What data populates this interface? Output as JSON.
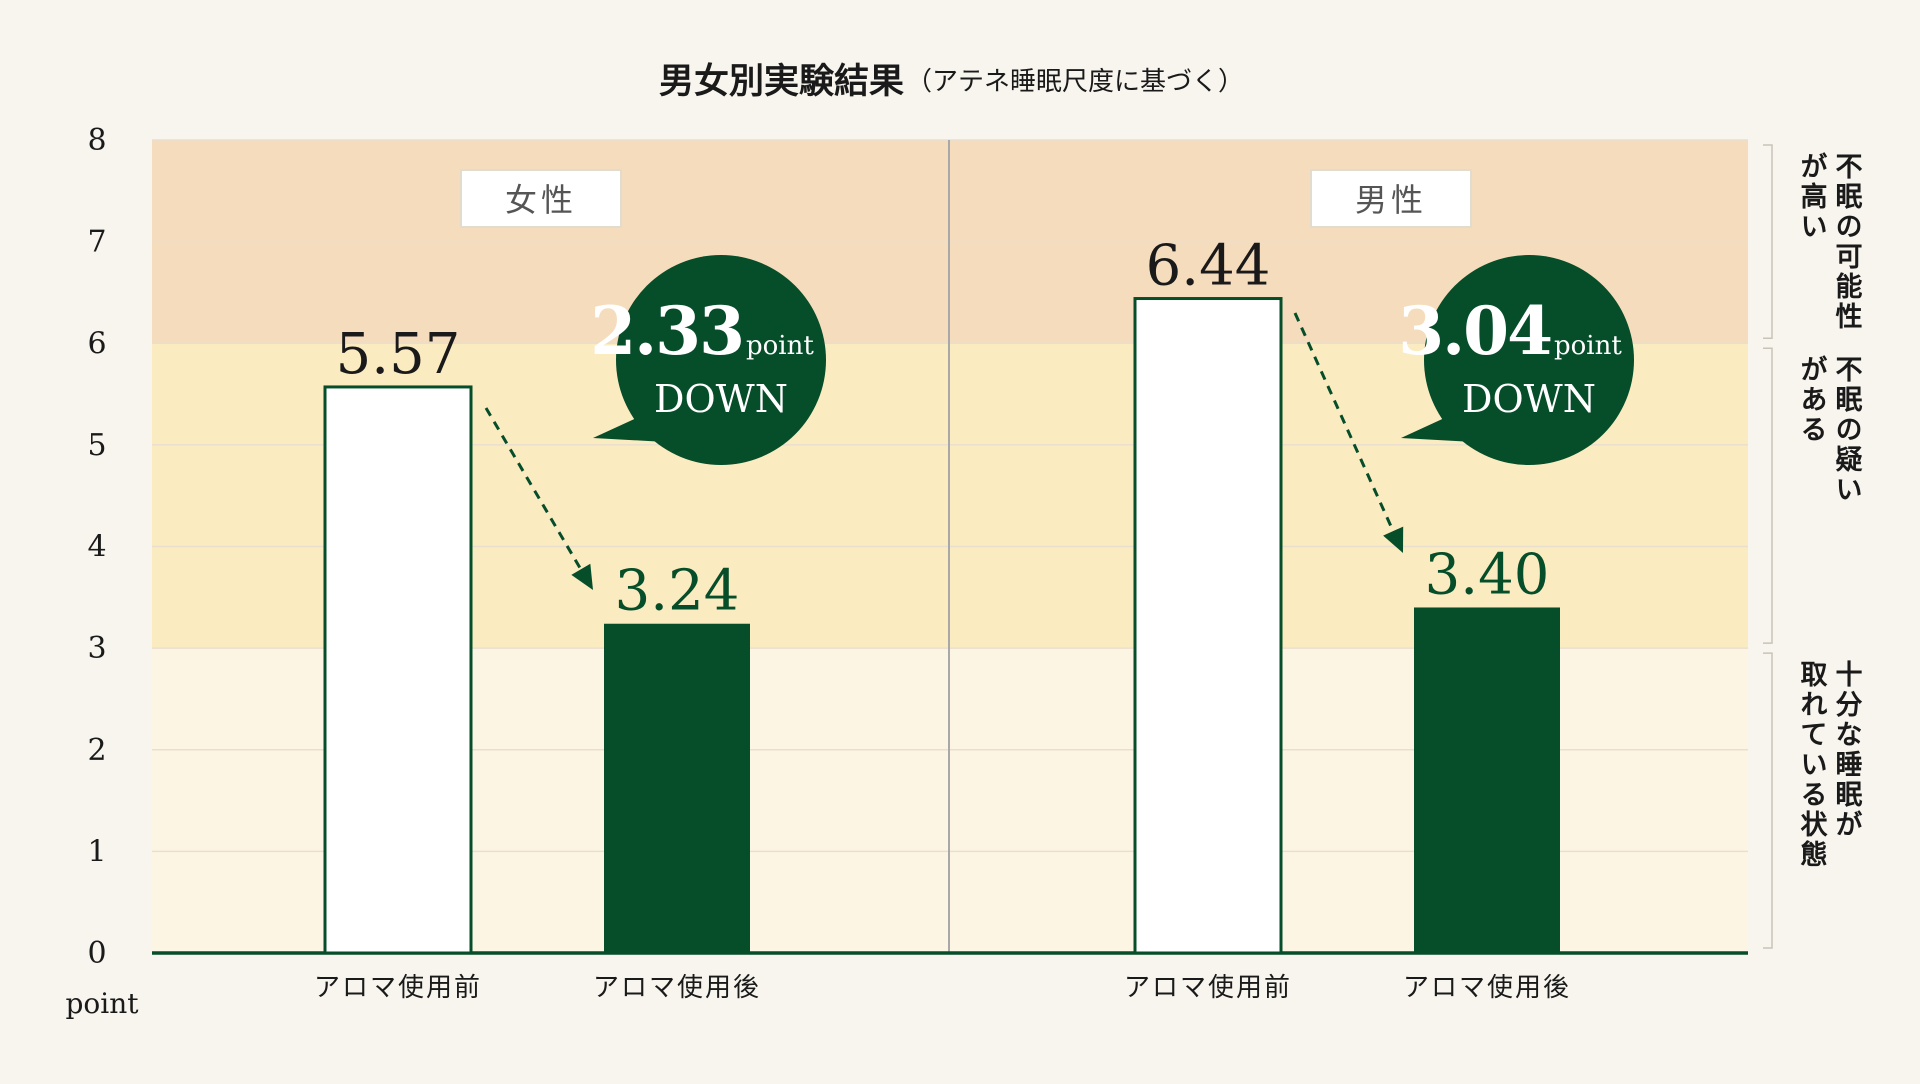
{
  "chart_data": {
    "type": "bar",
    "title": "男女別実験結果",
    "subtitle": "（アテネ睡眠尺度に基づく）",
    "ylabel": "point",
    "ylim": [
      0,
      8
    ],
    "yticks": [
      0,
      1,
      2,
      3,
      4,
      5,
      6,
      7,
      8
    ],
    "grid": true,
    "bands": [
      {
        "from": 0,
        "to": 3,
        "label": "十分な睡眠が取れている状態",
        "lines": [
          "十分な睡眠が",
          "取れている状態"
        ],
        "color": "#fdf5e4"
      },
      {
        "from": 3,
        "to": 6,
        "label": "不眠の疑いがある",
        "lines": [
          "不眠の疑い",
          "がある"
        ],
        "color": "#fbebc1"
      },
      {
        "from": 6,
        "to": 8,
        "label": "不眠の可能性が高い",
        "lines": [
          "不眠の可能性",
          "が高い"
        ],
        "color": "#f5dcbc"
      }
    ],
    "panels": [
      {
        "group": "女性",
        "categories": [
          "アロマ使用前",
          "アロマ使用後"
        ],
        "values": [
          5.57,
          3.24
        ],
        "value_labels": [
          "5.57",
          "3.24"
        ],
        "change": {
          "value": "2.33",
          "unit": "point",
          "text": "DOWN"
        }
      },
      {
        "group": "男性",
        "categories": [
          "アロマ使用前",
          "アロマ使用後"
        ],
        "values": [
          6.44,
          3.4
        ],
        "value_labels": [
          "6.44",
          "3.40"
        ],
        "change": {
          "value": "3.04",
          "unit": "point",
          "text": "DOWN"
        }
      }
    ],
    "colors": {
      "before_fill": "#ffffff",
      "accent": "#064d29",
      "text": "#1a1a1a",
      "divider": "#a8a8a8",
      "grid": "#e9dfcf"
    }
  }
}
